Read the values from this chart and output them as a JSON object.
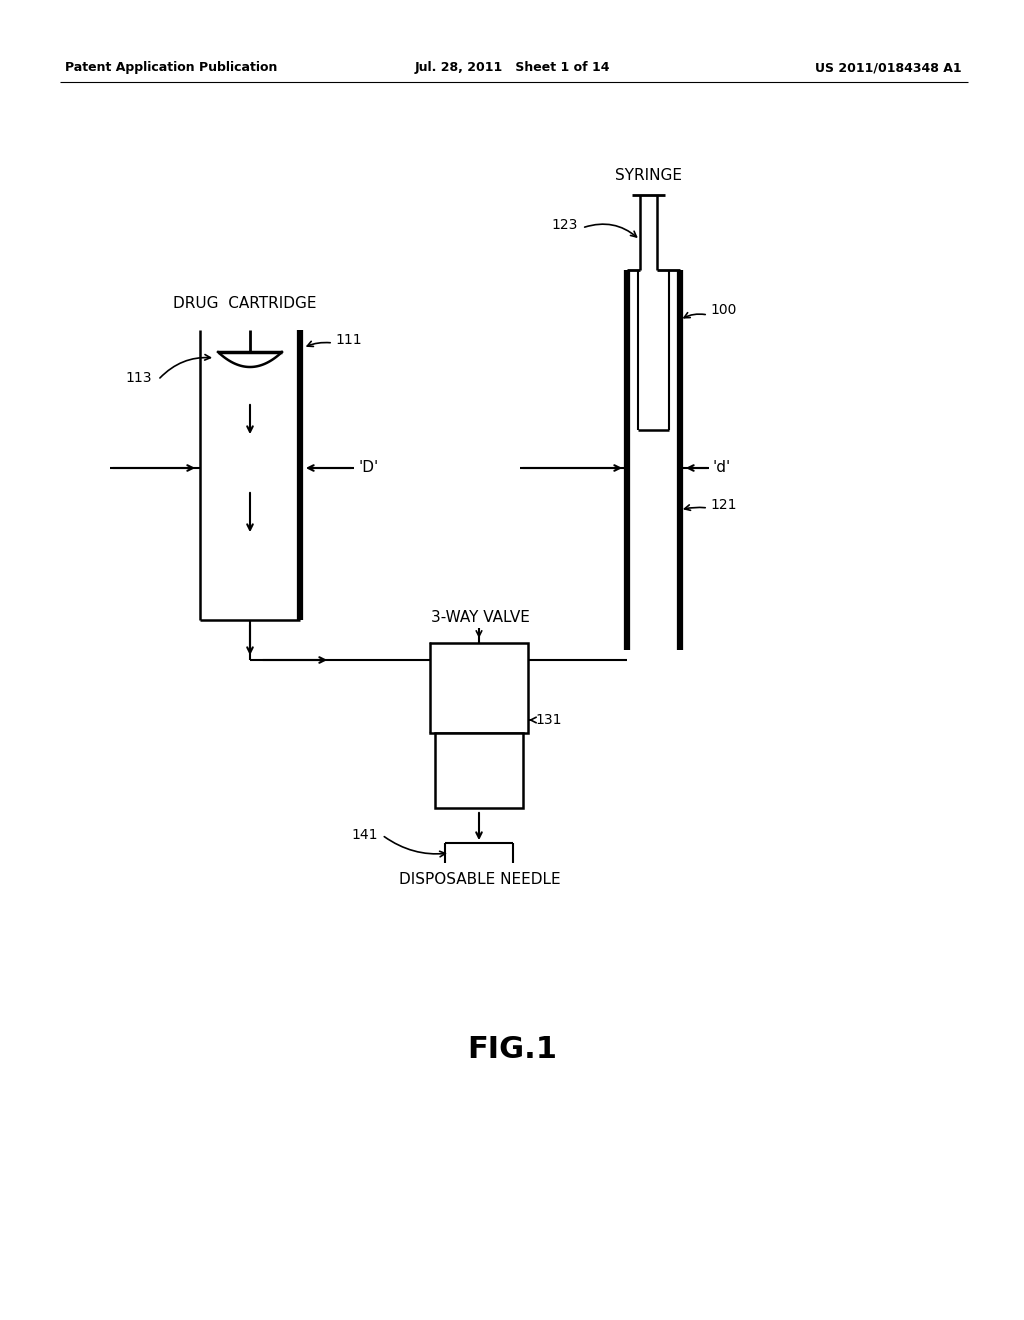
{
  "bg_color": "#ffffff",
  "line_color": "#000000",
  "text_color": "#000000",
  "header_left": "Patent Application Publication",
  "header_mid": "Jul. 28, 2011   Sheet 1 of 14",
  "header_right": "US 2011/0184348 A1",
  "fig_label": "FIG.1",
  "label_drug_cartridge": "DRUG  CARTRIDGE",
  "label_syringe": "SYRINGE",
  "label_3way": "3-WAY VALVE",
  "label_disposable": "DISPOSABLE NEEDLE",
  "ref_111": "111",
  "ref_113": "113",
  "ref_100": "100",
  "ref_121": "121",
  "ref_123": "123",
  "ref_131": "131",
  "ref_141": "141",
  "label_D": "'D'",
  "label_d": "'d'"
}
